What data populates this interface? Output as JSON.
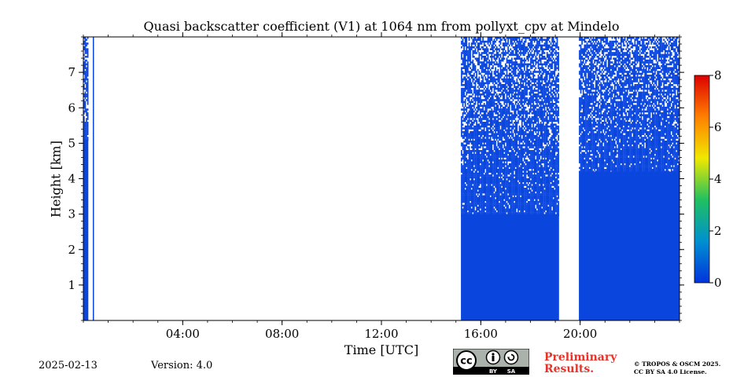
{
  "chart_data": {
    "type": "heatmap",
    "title": "Quasi backscatter coefficient (V1) at 1064 nm from pollyxt_cpv at Mindelo",
    "xlabel": "Time [UTC]",
    "ylabel": "Height [km]",
    "x_unit": "hours UTC",
    "xlim": [
      0,
      24
    ],
    "ylim": [
      0,
      8
    ],
    "xticks": [
      {
        "value": 4,
        "label": "04:00"
      },
      {
        "value": 8,
        "label": "08:00"
      },
      {
        "value": 12,
        "label": "12:00"
      },
      {
        "value": 16,
        "label": "16:00"
      },
      {
        "value": 20,
        "label": "20:00"
      }
    ],
    "yticks": [
      {
        "value": 1,
        "label": "1"
      },
      {
        "value": 2,
        "label": "2"
      },
      {
        "value": 3,
        "label": "3"
      },
      {
        "value": 4,
        "label": "4"
      },
      {
        "value": 5,
        "label": "5"
      },
      {
        "value": 6,
        "label": "6"
      },
      {
        "value": 7,
        "label": "7"
      }
    ],
    "colorbar": {
      "range": [
        0,
        8
      ],
      "ticks": [
        {
          "value": 0,
          "label": "0"
        },
        {
          "value": 2,
          "label": "2"
        },
        {
          "value": 4,
          "label": "4"
        },
        {
          "value": 6,
          "label": "6"
        },
        {
          "value": 8,
          "label": "8"
        }
      ],
      "colors": [
        "#0033dd",
        "#0090d0",
        "#20c060",
        "#f0e800",
        "#ff8000",
        "#dd0000"
      ]
    },
    "fill_color": "#0a46de",
    "observation_periods": [
      {
        "start": 0.0,
        "end": 0.2,
        "solid_top_km": 5.1,
        "max_km": 8
      },
      {
        "start": 0.38,
        "end": 0.42,
        "solid_top_km": 8.0,
        "max_km": 8
      },
      {
        "start": 15.2,
        "end": 19.15,
        "solid_top_km": 3.0,
        "max_km": 8
      },
      {
        "start": 19.95,
        "end": 24.0,
        "solid_top_km": 4.2,
        "max_km": 8
      }
    ]
  },
  "footer": {
    "date": "2025-02-13",
    "version": "Version: 4.0",
    "preliminary_line1": "Preliminary",
    "preliminary_line2": "Results.",
    "copyright_line1": "© TROPOS & OSCM 2025.",
    "copyright_line2": "CC BY SA 4.0 License.",
    "license_badge": {
      "cc": "cc",
      "by": "BY",
      "sa": "SA"
    }
  }
}
